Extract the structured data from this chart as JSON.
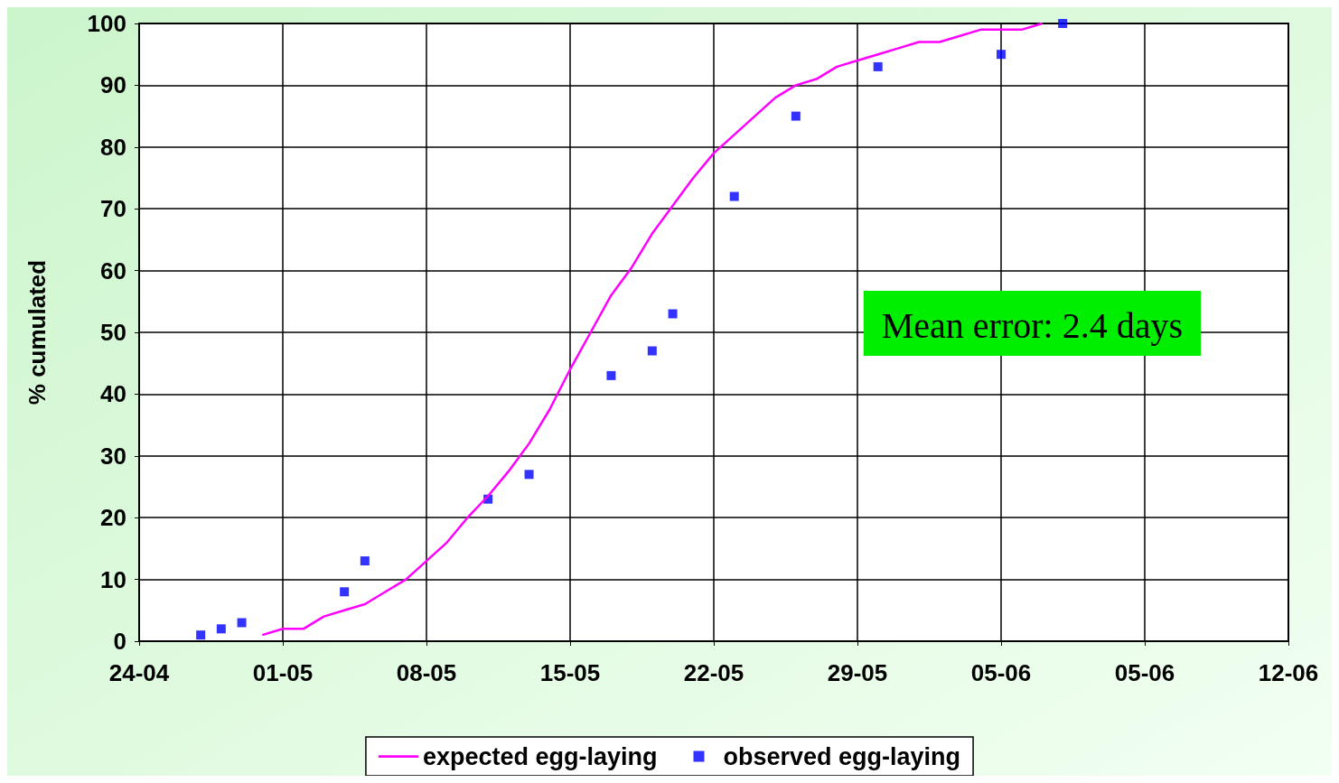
{
  "chart_data": {
    "type": "line",
    "ylabel": "% cumulated",
    "xlim": [
      "--04-24",
      "--06-19"
    ],
    "xticks": [
      {
        "value": "--04-24",
        "label": "24-04"
      },
      {
        "value": "--05-01",
        "label": "01-05"
      },
      {
        "value": "--05-08",
        "label": "08-05"
      },
      {
        "value": "--05-15",
        "label": "15-05"
      },
      {
        "value": "--05-22",
        "label": "22-05"
      },
      {
        "value": "--05-29",
        "label": "29-05"
      },
      {
        "value": "--06-05",
        "label": "05-06"
      },
      {
        "value": "--06-12",
        "label": "05-06"
      },
      {
        "value": "--06-19",
        "label": "12-06"
      }
    ],
    "ylim": [
      0,
      100
    ],
    "yticks": [
      0,
      10,
      20,
      30,
      40,
      50,
      60,
      70,
      80,
      90,
      100
    ],
    "grid": true,
    "legend": "bottom",
    "annotations": [
      "Mean error: 2.4 days"
    ],
    "series": [
      {
        "name": "expected egg-laying",
        "color": "#ff00ff",
        "marker": "none",
        "line_style": "solid",
        "x": [
          "--04-30",
          "--05-01",
          "--05-02",
          "--05-03",
          "--05-04",
          "--05-05",
          "--05-06",
          "--05-07",
          "--05-08",
          "--05-09",
          "--05-10",
          "--05-11",
          "--05-12",
          "--05-13",
          "--05-14",
          "--05-15",
          "--05-16",
          "--05-17",
          "--05-18",
          "--05-19",
          "--05-20",
          "--05-21",
          "--05-22",
          "--05-23",
          "--05-24",
          "--05-25",
          "--05-26",
          "--05-27",
          "--05-28",
          "--05-29",
          "--05-30",
          "--05-31",
          "--06-01",
          "--06-02",
          "--06-03",
          "--06-04",
          "--06-05",
          "--06-06",
          "--06-07"
        ],
        "values": [
          1,
          2,
          2,
          4,
          5,
          6,
          8,
          10,
          13,
          16,
          20,
          23.5,
          27.5,
          32,
          37.5,
          44,
          50,
          56,
          60.5,
          66,
          70.5,
          75,
          79,
          82,
          85,
          88,
          90,
          91,
          93,
          94,
          95,
          96,
          97,
          97,
          98,
          99,
          99,
          99,
          100
        ]
      },
      {
        "name": "observed egg-laying",
        "type": "scatter",
        "color": "#0000ff",
        "marker": "square",
        "x": [
          "--04-27",
          "--04-28",
          "--04-29",
          "--05-04",
          "--05-05",
          "--05-11",
          "--05-13",
          "--05-17",
          "--05-19",
          "--05-20",
          "--05-23",
          "--05-26",
          "--05-30",
          "--06-05",
          "--06-08"
        ],
        "values": [
          1,
          2,
          3,
          8,
          13,
          23,
          27,
          43,
          47,
          53,
          72,
          85,
          93,
          95,
          100
        ]
      }
    ]
  }
}
